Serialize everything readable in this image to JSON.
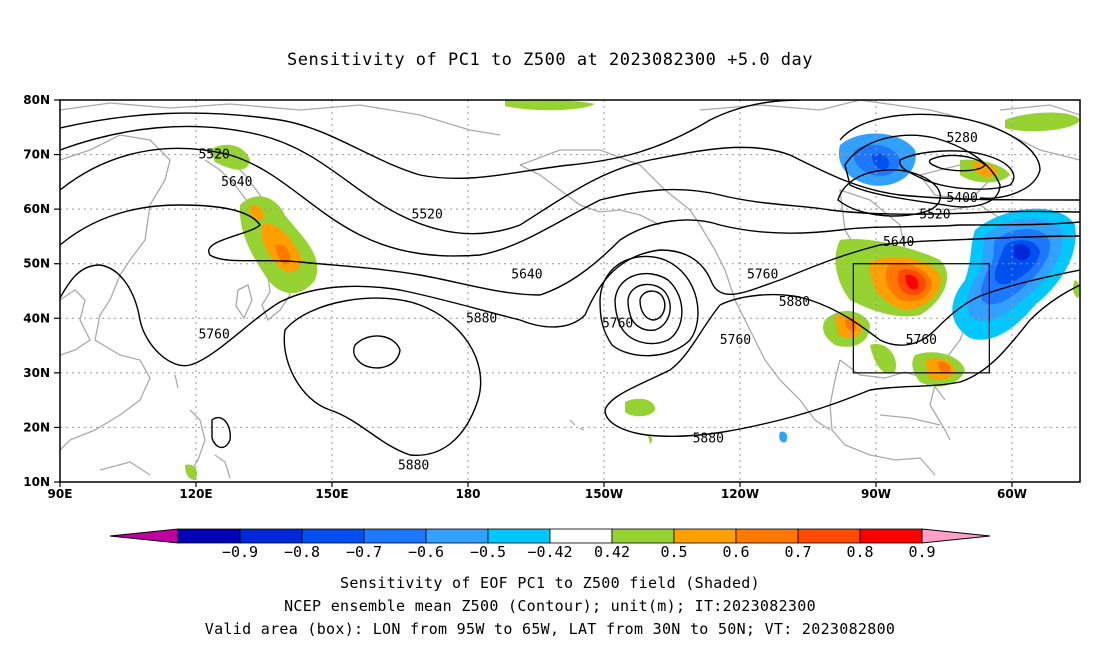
{
  "title": "Sensitivity of PC1 to Z500 at 2023082300 +5.0 day",
  "axes": {
    "lat_labels": [
      "80N",
      "70N",
      "60N",
      "50N",
      "40N",
      "30N",
      "20N",
      "10N"
    ],
    "lon_labels": [
      "90E",
      "120E",
      "150E",
      "180",
      "150W",
      "120W",
      "90W",
      "60W"
    ]
  },
  "contour_labels": [
    {
      "text": "5520",
      "x": 124,
      "y": 70
    },
    {
      "text": "5640",
      "x": 129,
      "y": 65
    },
    {
      "text": "5520",
      "x": 171,
      "y": 59
    },
    {
      "text": "5640",
      "x": 193,
      "y": 48
    },
    {
      "text": "5760",
      "x": 245,
      "y": 48
    },
    {
      "text": "5880",
      "x": 183,
      "y": 40
    },
    {
      "text": "5760",
      "x": 213,
      "y": 39
    },
    {
      "text": "5760",
      "x": 239,
      "y": 36
    },
    {
      "text": "5880",
      "x": 252,
      "y": 43
    },
    {
      "text": "5760",
      "x": 124,
      "y": 37
    },
    {
      "text": "5880",
      "x": 168,
      "y": 13
    },
    {
      "text": "5880",
      "x": 233,
      "y": 18
    },
    {
      "text": "5280",
      "x": 289,
      "y": 73
    },
    {
      "text": "5400",
      "x": 289,
      "y": 62
    },
    {
      "text": "5520",
      "x": 283,
      "y": 59
    },
    {
      "text": "5640",
      "x": 275,
      "y": 54
    },
    {
      "text": "5760",
      "x": 280,
      "y": 36
    }
  ],
  "valid_box": {
    "lon_min": -95,
    "lon_max": -65,
    "lat_min": 30,
    "lat_max": 50
  },
  "colorbar": {
    "labels": [
      "-0.9",
      "-0.8",
      "-0.7",
      "-0.6",
      "-0.5",
      "-0.42",
      "0.42",
      "0.5",
      "0.6",
      "0.7",
      "0.8",
      "0.9"
    ],
    "colors": [
      "#c000a0",
      "#0000b4",
      "#0028d8",
      "#0050f0",
      "#1e78ff",
      "#32a0ff",
      "#00c8ff",
      "#ffffff",
      "#96d232",
      "#ffa000",
      "#ff7800",
      "#ff4a00",
      "#ff0000",
      "#ffa0c8"
    ]
  },
  "footer": {
    "line1": "Sensitivity of EOF PC1 to Z500 field (Shaded)",
    "line2": "NCEP ensemble mean Z500 (Contour); unit(m); IT:2023082300",
    "line3": "Valid area (box): LON from 95W to 65W, LAT from 30N to 50N; VT: 2023082800"
  }
}
